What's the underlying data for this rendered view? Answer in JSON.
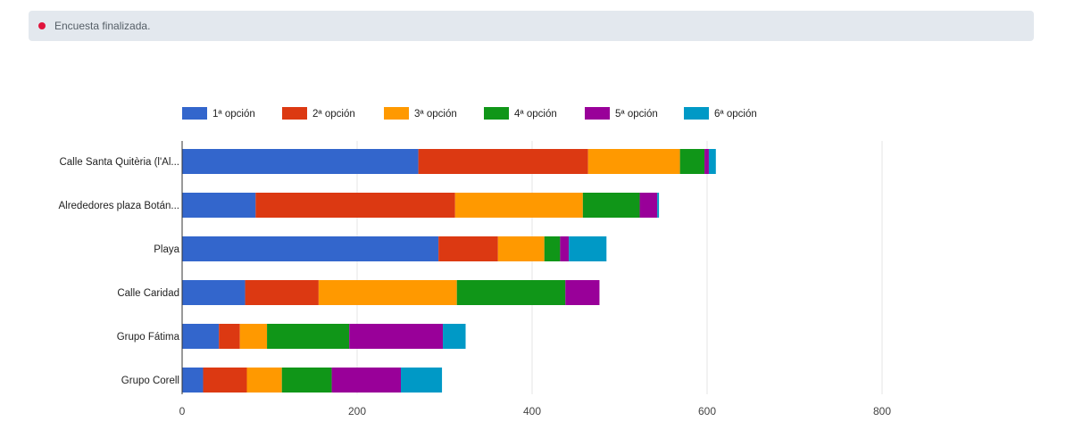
{
  "status": {
    "text": "Encuesta finalizada."
  },
  "chart_data": {
    "type": "bar",
    "orientation": "horizontal",
    "stacked": true,
    "legend_position": "top",
    "grid": true,
    "categories": [
      "Calle Santa Quitèria (l'Al...",
      "Alrededores plaza Botán...",
      "Playa",
      "Calle Caridad",
      "Grupo Fátima",
      "Grupo Corell"
    ],
    "series": [
      {
        "name": "1ª opción",
        "color": "#3366cc",
        "values": [
          270,
          84,
          293,
          72,
          42,
          24
        ]
      },
      {
        "name": "2ª opción",
        "color": "#dc3912",
        "values": [
          194,
          228,
          68,
          84,
          24,
          50
        ]
      },
      {
        "name": "3ª opción",
        "color": "#ff9900",
        "values": [
          105,
          146,
          53,
          158,
          31,
          40
        ]
      },
      {
        "name": "4ª opción",
        "color": "#109618",
        "values": [
          28,
          65,
          18,
          124,
          94,
          57
        ]
      },
      {
        "name": "5ª opción",
        "color": "#990099",
        "values": [
          5,
          20,
          10,
          39,
          107,
          79
        ]
      },
      {
        "name": "6ª opción",
        "color": "#0099c6",
        "values": [
          8,
          2,
          43,
          0,
          26,
          47
        ]
      }
    ],
    "xlim": [
      0,
      800
    ],
    "xticks": [
      0,
      200,
      400,
      600,
      800
    ]
  }
}
